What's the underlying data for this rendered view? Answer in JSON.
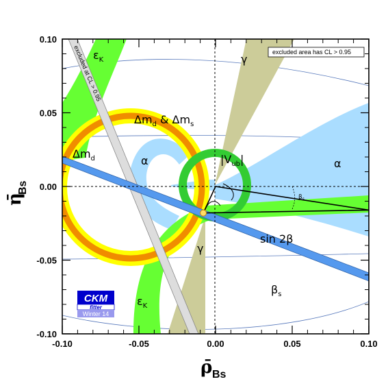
{
  "chart_data": {
    "type": "scatter",
    "xlabel": "ρ̄",
    "xlabel_sub": "Bs",
    "ylabel": "η̄",
    "ylabel_sub": "Bs",
    "xlim": [
      -0.1,
      0.1
    ],
    "ylim": [
      -0.1,
      0.1
    ],
    "xticks": [
      "-0.10",
      "-0.05",
      "0.00",
      "0.05",
      "0.10"
    ],
    "yticks": [
      "-0.10",
      "-0.05",
      "0.00",
      "0.05",
      "0.10"
    ],
    "grid": false,
    "legend_note": "excluded area has CL > 0.95",
    "excluded_label": "excluded at CL > 0.95",
    "apex": {
      "x": -0.008,
      "y": -0.018
    },
    "unitarity_triangle": {
      "vertices": [
        [
          0.0,
          0.0
        ],
        [
          -0.008,
          -0.018
        ],
        [
          0.1,
          -0.016
        ]
      ]
    },
    "constraints": [
      {
        "name": "Δm_d",
        "label": "Δm",
        "sub": "d",
        "center": [
          -0.055,
          -0.001
        ],
        "radius": 0.038
      },
      {
        "name": "Δm_d & Δm_s",
        "label_a": "Δm",
        "sub_a": "d",
        "label_mid": " & Δm",
        "sub_b": "s"
      },
      {
        "name": "|V_ub|",
        "label": "|V",
        "sub": "ub",
        "tail": "|",
        "center": [
          0.0,
          0.0
        ],
        "radius": 0.021
      },
      {
        "name": "ε_K",
        "label": "ε",
        "sub": "K"
      },
      {
        "name": "α",
        "label": "α"
      },
      {
        "name": "γ",
        "label": "γ"
      },
      {
        "name": "sin 2β",
        "label": "sin 2β",
        "slope": -0.46
      },
      {
        "name": "β_s",
        "label": "β",
        "sub": "s"
      }
    ],
    "colors": {
      "dmd_outer": "#ffff00",
      "dmd_inner": "#f08c00",
      "vub": "#33cc33",
      "epsk": "#66ff33",
      "alpha": "#aaddff",
      "gamma": "#cccc99",
      "sin2beta": "#5599ee",
      "excluded_band": "#cccccc"
    }
  },
  "logo": {
    "name": "CKM",
    "sub": "fitter",
    "season": "Winter 14"
  }
}
